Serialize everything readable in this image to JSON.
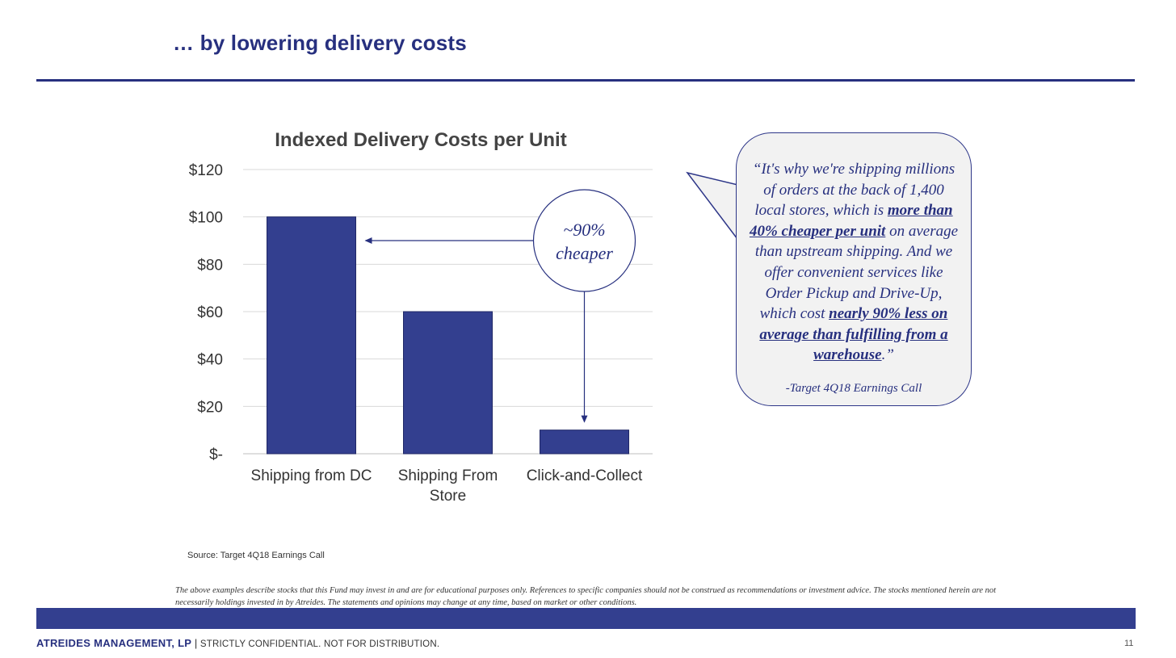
{
  "slide": {
    "title": "… by lowering delivery costs",
    "source": "Source: Target 4Q18 Earnings Call",
    "disclaimer": "The above examples describe stocks that this Fund may invest in and are for educational purposes only.  References to specific companies should not be construed as recommendations or investment advice.  The stocks mentioned herein are not necessarily holdings invested in by Atreides.  The statements and opinions may change at any time, based on market or other conditions.",
    "footer_firm": "ATREIDES MANAGEMENT, LP",
    "footer_separator": " | ",
    "footer_confidential": "STRICTLY CONFIDENTIAL. NOT FOR DISTRIBUTION.",
    "page_number": "11"
  },
  "quote": {
    "p1": "“It's why we're shipping millions of orders at the back of 1,400 local stores, which is ",
    "b1": "more than 40% cheaper per unit",
    "p2": " on average than upstream shipping. And we offer convenient services like Order Pickup and Drive-Up, which cost ",
    "b2": "nearly 90% less on average than fulfilling from a warehouse",
    "p3": ".”",
    "attribution": "-Target 4Q18 Earnings Call"
  },
  "chart_data": {
    "type": "bar",
    "title": "Indexed Delivery Costs per Unit",
    "categories": [
      "Shipping from DC",
      "Shipping From Store",
      "Click-and-Collect"
    ],
    "category_lines": [
      [
        "Shipping from DC"
      ],
      [
        "Shipping From",
        "Store"
      ],
      [
        "Click-and-Collect"
      ]
    ],
    "values": [
      100,
      60,
      10
    ],
    "ylim": [
      0,
      120
    ],
    "yticks": [
      0,
      20,
      40,
      60,
      80,
      100,
      120
    ],
    "ytick_labels": [
      "$-",
      "$20",
      "$40",
      "$60",
      "$80",
      "$100",
      "$120"
    ],
    "xlabel": "",
    "ylabel": "",
    "grid": true,
    "bar_color": "#333f8f",
    "annotation": {
      "line1": "~90%",
      "line2": "cheaper",
      "from_category": "Click-and-Collect",
      "to_category": "Shipping from DC"
    }
  },
  "colors": {
    "brand_navy": "#27307f",
    "bar": "#333f8f",
    "grid": "#d9d9d9",
    "quote_bg": "#f2f2f2"
  }
}
